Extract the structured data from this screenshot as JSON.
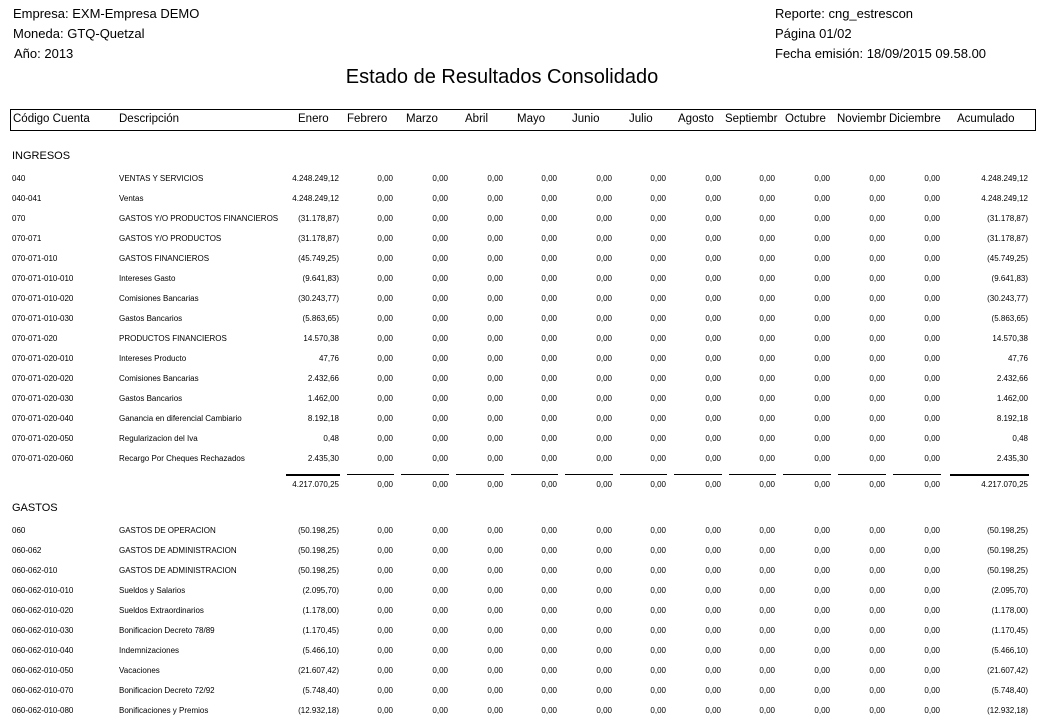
{
  "header": {
    "empresa": "Empresa: EXM-Empresa DEMO",
    "moneda": "Moneda: GTQ-Quetzal",
    "anio": "Año: 2013",
    "reporte": "Reporte: cng_estrescon",
    "pagina": "Página  01/02",
    "fecha_emision": "Fecha emisión:   18/09/2015 09.58.00"
  },
  "title": "Estado de Resultados Consolidado",
  "columns": [
    "Código Cuenta",
    "Descripción",
    "Enero",
    "Febrero",
    "Marzo",
    "Abril",
    "Mayo",
    "Junio",
    "Julio",
    "Agosto",
    "Septiembr",
    "Octubre",
    "Noviembr",
    "Diciembre",
    "Acumulado"
  ],
  "sections": [
    {
      "name": "INGRESOS",
      "rows": [
        {
          "code": "040",
          "desc": "VENTAS Y SERVICIOS",
          "enero": "4.248.249,12",
          "acum": "4.248.249,12"
        },
        {
          "code": "040-041",
          "desc": "Ventas",
          "enero": "4.248.249,12",
          "acum": "4.248.249,12"
        },
        {
          "code": "070",
          "desc": "GASTOS Y/O PRODUCTOS FINANCIEROS",
          "enero": "(31.178,87)",
          "acum": "(31.178,87)"
        },
        {
          "code": "070-071",
          "desc": "GASTOS Y/O PRODUCTOS",
          "enero": "(31.178,87)",
          "acum": "(31.178,87)"
        },
        {
          "code": "070-071-010",
          "desc": "GASTOS FINANCIEROS",
          "enero": "(45.749,25)",
          "acum": "(45.749,25)"
        },
        {
          "code": "070-071-010-010",
          "desc": "Intereses Gasto",
          "enero": "(9.641,83)",
          "acum": "(9.641,83)"
        },
        {
          "code": "070-071-010-020",
          "desc": "Comisiones Bancarias",
          "enero": "(30.243,77)",
          "acum": "(30.243,77)"
        },
        {
          "code": "070-071-010-030",
          "desc": "Gastos Bancarios",
          "enero": "(5.863,65)",
          "acum": "(5.863,65)"
        },
        {
          "code": "070-071-020",
          "desc": "PRODUCTOS FINANCIEROS",
          "enero": "14.570,38",
          "acum": "14.570,38"
        },
        {
          "code": "070-071-020-010",
          "desc": "Intereses Producto",
          "enero": "47,76",
          "acum": "47,76"
        },
        {
          "code": "070-071-020-020",
          "desc": "Comisiones Bancarias",
          "enero": "2.432,66",
          "acum": "2.432,66"
        },
        {
          "code": "070-071-020-030",
          "desc": "Gastos Bancarios",
          "enero": "1.462,00",
          "acum": "1.462,00"
        },
        {
          "code": "070-071-020-040",
          "desc": "Ganancia en diferencial Cambiario",
          "enero": "8.192,18",
          "acum": "8.192,18"
        },
        {
          "code": "070-071-020-050",
          "desc": "Regularizacion del Iva",
          "enero": "0,48",
          "acum": "0,48"
        },
        {
          "code": "070-071-020-060",
          "desc": "Recargo Por Cheques Rechazados",
          "enero": "2.435,30",
          "acum": "2.435,30"
        }
      ],
      "total": {
        "enero": "4.217.070,25",
        "acum": "4.217.070,25"
      }
    },
    {
      "name": "GASTOS",
      "rows": [
        {
          "code": "060",
          "desc": "GASTOS DE OPERACION",
          "enero": "(50.198,25)",
          "acum": "(50.198,25)"
        },
        {
          "code": "060-062",
          "desc": "GASTOS DE ADMINISTRACION",
          "enero": "(50.198,25)",
          "acum": "(50.198,25)"
        },
        {
          "code": "060-062-010",
          "desc": "GASTOS DE ADMINISTRACION",
          "enero": "(50.198,25)",
          "acum": "(50.198,25)"
        },
        {
          "code": "060-062-010-010",
          "desc": "Sueldos y Salarios",
          "enero": "(2.095,70)",
          "acum": "(2.095,70)"
        },
        {
          "code": "060-062-010-020",
          "desc": "Sueldos Extraordinarios",
          "enero": "(1.178,00)",
          "acum": "(1.178,00)"
        },
        {
          "code": "060-062-010-030",
          "desc": "Bonificacion Decreto 78/89",
          "enero": "(1.170,45)",
          "acum": "(1.170,45)"
        },
        {
          "code": "060-062-010-040",
          "desc": "Indemnizaciones",
          "enero": "(5.466,10)",
          "acum": "(5.466,10)"
        },
        {
          "code": "060-062-010-050",
          "desc": "Vacaciones",
          "enero": "(21.607,42)",
          "acum": "(21.607,42)"
        },
        {
          "code": "060-062-010-070",
          "desc": "Bonificacion Decreto 72/92",
          "enero": "(5.748,40)",
          "acum": "(5.748,40)"
        },
        {
          "code": "060-062-010-080",
          "desc": "Bonificaciones y Premios",
          "enero": "(12.932,18)",
          "acum": "(12.932,18)"
        }
      ]
    }
  ],
  "zero": "0,00"
}
